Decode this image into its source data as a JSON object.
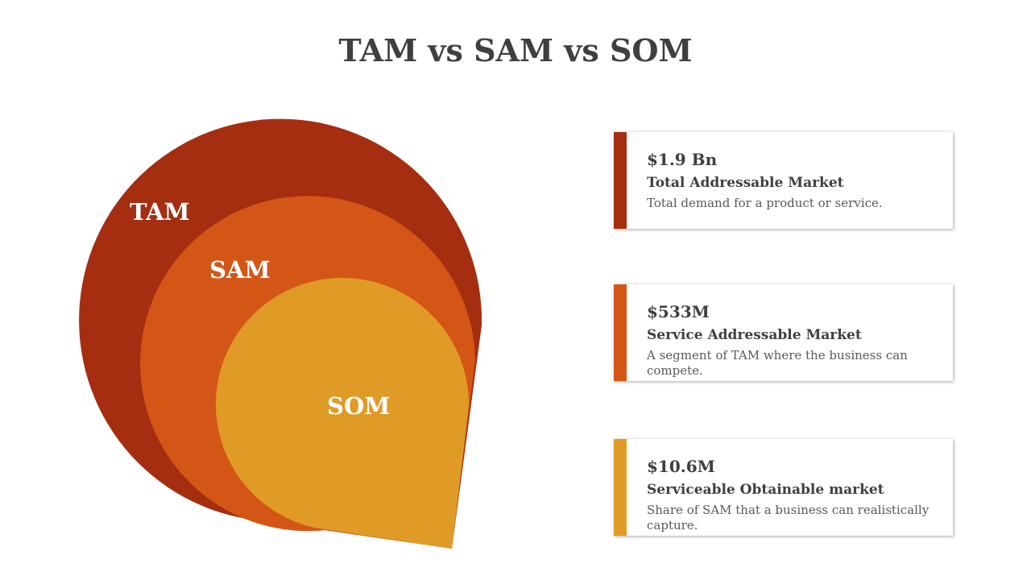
{
  "title": "TAM vs SAM vs SOM",
  "diagram": {
    "tam_label": "TAM",
    "sam_label": "SAM",
    "som_label": "SOM"
  },
  "cards": [
    {
      "value": "$1.9 Bn",
      "label": "Total Addressable Market",
      "description": "Total demand for a product or service.",
      "color": "#a52e10"
    },
    {
      "value": "$533M",
      "label": "Service Addressable Market",
      "description": "A segment of TAM where the business can compete.",
      "color": "#d45617"
    },
    {
      "value": "$10.6M",
      "label": "Serviceable Obtainable market",
      "description": "Share of SAM that a business can realistically capture.",
      "color": "#e09b26"
    }
  ],
  "colors": {
    "tam": "#a52e10",
    "sam": "#d45617",
    "som": "#e09b26",
    "title": "#3f3f3f"
  }
}
